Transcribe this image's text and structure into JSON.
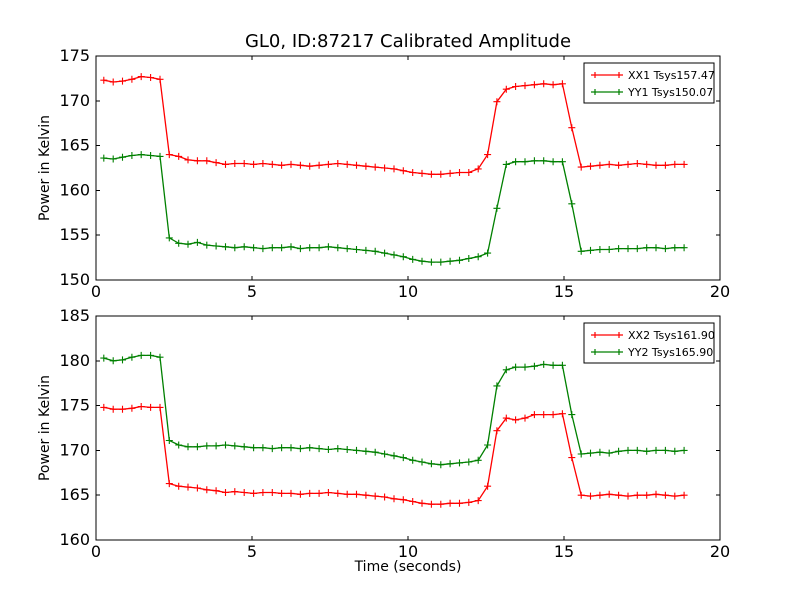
{
  "figure": {
    "background": "#ffffff"
  },
  "colors": {
    "xx_series": "#ff0000",
    "yy_series": "#008000",
    "axis": "#000000",
    "legend_border": "#000000",
    "legend_background": "#ffffff"
  },
  "chart_data": [
    {
      "type": "line",
      "title": "GL0, ID:87217 Calibrated Amplitude",
      "xlabel": "",
      "ylabel": "Power in Kelvin",
      "xlim": [
        0,
        20
      ],
      "ylim": [
        150,
        175
      ],
      "xticks": [
        0,
        5,
        10,
        15,
        20
      ],
      "yticks": [
        150,
        155,
        160,
        165,
        170,
        175
      ],
      "grid": false,
      "legend_position": "upper right",
      "x": [
        0.25,
        0.55,
        0.85,
        1.15,
        1.45,
        1.75,
        2.05,
        2.35,
        2.65,
        2.95,
        3.25,
        3.55,
        3.85,
        4.15,
        4.45,
        4.75,
        5.05,
        5.35,
        5.65,
        5.95,
        6.25,
        6.55,
        6.85,
        7.15,
        7.45,
        7.75,
        8.05,
        8.35,
        8.65,
        8.95,
        9.25,
        9.55,
        9.85,
        10.15,
        10.45,
        10.75,
        11.05,
        11.35,
        11.65,
        11.95,
        12.25,
        12.55,
        12.85,
        13.15,
        13.45,
        13.75,
        14.05,
        14.35,
        14.65,
        14.95,
        15.25,
        15.55,
        15.85,
        16.15,
        16.45,
        16.75,
        17.05,
        17.35,
        17.65,
        17.95,
        18.25,
        18.55,
        18.85
      ],
      "series": [
        {
          "name": "XX1 Tsys157.47",
          "tsys": 157.47,
          "color": "#ff0000",
          "marker": "+",
          "values": [
            172.3,
            172.1,
            172.2,
            172.4,
            172.7,
            172.6,
            172.4,
            164.0,
            163.8,
            163.4,
            163.3,
            163.3,
            163.1,
            162.9,
            163.0,
            163.0,
            162.9,
            163.0,
            162.9,
            162.8,
            162.9,
            162.8,
            162.7,
            162.8,
            162.9,
            163.0,
            162.9,
            162.8,
            162.7,
            162.6,
            162.5,
            162.4,
            162.2,
            162.0,
            161.9,
            161.8,
            161.8,
            161.9,
            162.0,
            162.0,
            162.4,
            164.0,
            169.9,
            171.3,
            171.6,
            171.7,
            171.8,
            171.9,
            171.8,
            171.9,
            167.0,
            162.6,
            162.7,
            162.8,
            162.9,
            162.8,
            162.9,
            163.0,
            162.9,
            162.8,
            162.8,
            162.9,
            162.9
          ]
        },
        {
          "name": "YY1 Tsys150.07",
          "tsys": 150.07,
          "color": "#008000",
          "marker": "+",
          "values": [
            163.6,
            163.5,
            163.7,
            163.9,
            164.0,
            163.9,
            163.8,
            154.7,
            154.1,
            154.0,
            154.2,
            153.9,
            153.8,
            153.7,
            153.6,
            153.7,
            153.6,
            153.5,
            153.6,
            153.6,
            153.7,
            153.5,
            153.6,
            153.6,
            153.7,
            153.6,
            153.5,
            153.4,
            153.3,
            153.2,
            153.0,
            152.8,
            152.6,
            152.3,
            152.1,
            152.0,
            152.0,
            152.1,
            152.2,
            152.4,
            152.6,
            153.0,
            158.0,
            162.9,
            163.2,
            163.2,
            163.3,
            163.3,
            163.2,
            163.2,
            158.5,
            153.2,
            153.3,
            153.4,
            153.4,
            153.5,
            153.5,
            153.5,
            153.6,
            153.6,
            153.5,
            153.6,
            153.6
          ]
        }
      ]
    },
    {
      "type": "line",
      "title": "",
      "xlabel": "Time (seconds)",
      "ylabel": "Power in Kelvin",
      "xlim": [
        0,
        20
      ],
      "ylim": [
        160,
        185
      ],
      "xticks": [
        0,
        5,
        10,
        15,
        20
      ],
      "yticks": [
        160,
        165,
        170,
        175,
        180,
        185
      ],
      "grid": false,
      "legend_position": "upper right",
      "x": [
        0.25,
        0.55,
        0.85,
        1.15,
        1.45,
        1.75,
        2.05,
        2.35,
        2.65,
        2.95,
        3.25,
        3.55,
        3.85,
        4.15,
        4.45,
        4.75,
        5.05,
        5.35,
        5.65,
        5.95,
        6.25,
        6.55,
        6.85,
        7.15,
        7.45,
        7.75,
        8.05,
        8.35,
        8.65,
        8.95,
        9.25,
        9.55,
        9.85,
        10.15,
        10.45,
        10.75,
        11.05,
        11.35,
        11.65,
        11.95,
        12.25,
        12.55,
        12.85,
        13.15,
        13.45,
        13.75,
        14.05,
        14.35,
        14.65,
        14.95,
        15.25,
        15.55,
        15.85,
        16.15,
        16.45,
        16.75,
        17.05,
        17.35,
        17.65,
        17.95,
        18.25,
        18.55,
        18.85
      ],
      "series": [
        {
          "name": "XX2 Tsys161.90",
          "tsys": 161.9,
          "color": "#ff0000",
          "marker": "+",
          "values": [
            174.8,
            174.6,
            174.6,
            174.7,
            174.9,
            174.8,
            174.8,
            166.3,
            166.0,
            165.9,
            165.8,
            165.6,
            165.5,
            165.3,
            165.4,
            165.3,
            165.2,
            165.3,
            165.3,
            165.2,
            165.2,
            165.1,
            165.2,
            165.2,
            165.3,
            165.2,
            165.1,
            165.1,
            165.0,
            164.9,
            164.8,
            164.6,
            164.5,
            164.3,
            164.1,
            164.0,
            164.0,
            164.1,
            164.1,
            164.2,
            164.4,
            166.0,
            172.2,
            173.6,
            173.4,
            173.6,
            174.0,
            174.0,
            174.0,
            174.1,
            169.2,
            165.0,
            164.9,
            165.0,
            165.1,
            165.0,
            164.9,
            165.0,
            165.0,
            165.1,
            165.0,
            164.9,
            165.0
          ]
        },
        {
          "name": "YY2 Tsys165.90",
          "tsys": 165.9,
          "color": "#008000",
          "marker": "+",
          "values": [
            180.3,
            180.0,
            180.1,
            180.4,
            180.6,
            180.6,
            180.4,
            171.1,
            170.6,
            170.4,
            170.4,
            170.5,
            170.5,
            170.6,
            170.5,
            170.4,
            170.3,
            170.3,
            170.2,
            170.3,
            170.3,
            170.2,
            170.3,
            170.2,
            170.1,
            170.2,
            170.1,
            170.0,
            169.9,
            169.8,
            169.6,
            169.4,
            169.2,
            168.9,
            168.7,
            168.5,
            168.4,
            168.5,
            168.6,
            168.7,
            168.9,
            170.6,
            177.2,
            179.0,
            179.3,
            179.3,
            179.4,
            179.6,
            179.5,
            179.5,
            174.0,
            169.6,
            169.7,
            169.8,
            169.7,
            169.9,
            170.0,
            170.0,
            169.9,
            170.0,
            170.0,
            169.9,
            170.0
          ]
        }
      ]
    }
  ]
}
